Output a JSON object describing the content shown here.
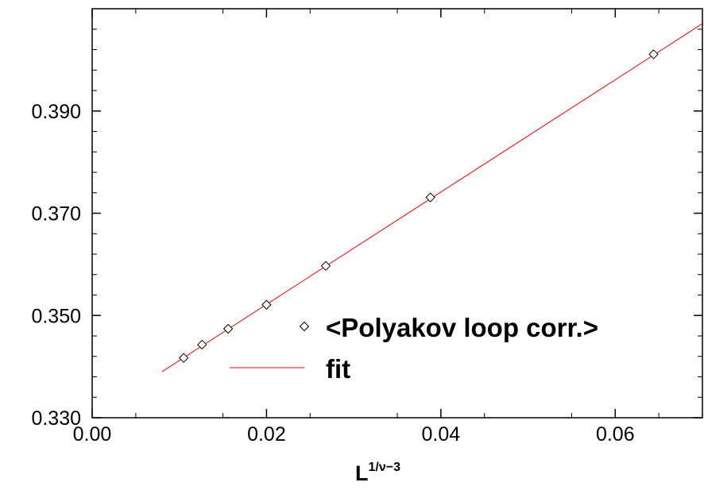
{
  "chart_data": {
    "type": "scatter",
    "title": "",
    "xlabel": "L",
    "xlabel_superscript": "1/ν−3",
    "ylabel": "",
    "xlim": [
      0.0,
      0.07
    ],
    "ylim": [
      0.33,
      0.41
    ],
    "x_ticks": [
      0.0,
      0.02,
      0.04,
      0.06
    ],
    "x_tick_labels": [
      "0.00",
      "0.02",
      "0.04",
      "0.06"
    ],
    "y_ticks": [
      0.33,
      0.35,
      0.37,
      0.39
    ],
    "y_tick_labels": [
      "0.330",
      "0.350",
      "0.370",
      "0.390"
    ],
    "grid": false,
    "legend_position": "lower-right",
    "series": [
      {
        "name": "<Polyakov loop corr.>",
        "marker": "diamond",
        "color": "#000000",
        "x": [
          0.0105,
          0.0126,
          0.0156,
          0.02,
          0.0268,
          0.0388,
          0.0644
        ],
        "y": [
          0.3417,
          0.3443,
          0.3474,
          0.3521,
          0.3597,
          0.3731,
          0.4011
        ]
      },
      {
        "name": "fit",
        "style": "line",
        "color": "#ff0000",
        "x": [
          0.008,
          0.07
        ],
        "y": [
          0.339,
          0.4071
        ]
      }
    ]
  }
}
